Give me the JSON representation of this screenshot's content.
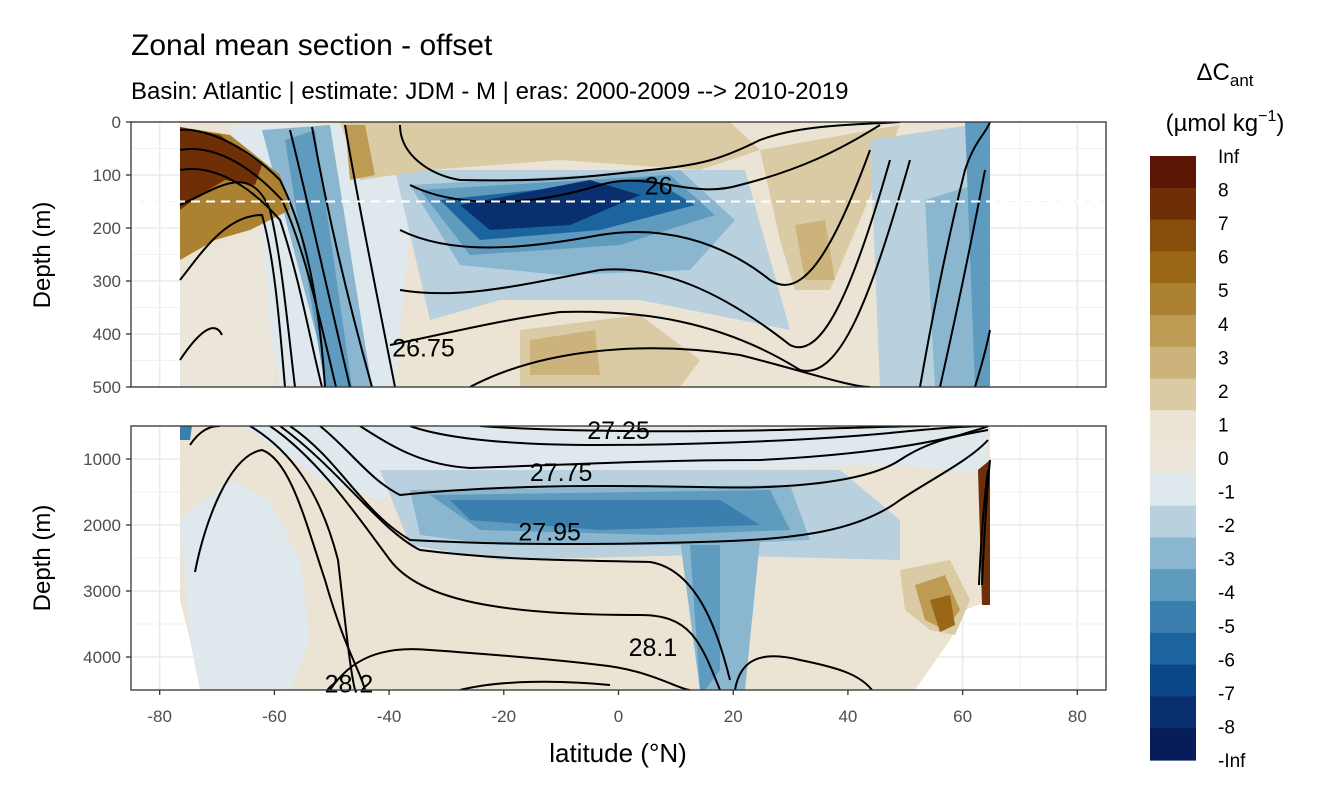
{
  "chart_data": {
    "type": "heatmap",
    "title": "Zonal mean section - offset",
    "subtitle": "Basin: Atlantic | estimate: JDM - M | eras: 2000-2009 --> 2010-2019",
    "xlabel": "latitude (°N)",
    "ylabel": "Depth (m)",
    "xlim": [
      -85,
      85
    ],
    "x_ticks": [
      -80,
      -60,
      -40,
      -20,
      0,
      20,
      40,
      60,
      80
    ],
    "x_tick_labels": [
      "-80",
      "-60",
      "-40",
      "-20",
      "0",
      "20",
      "40",
      "60",
      "80"
    ],
    "data_lat_range": [
      -77,
      64
    ],
    "grid": true,
    "panels": [
      {
        "ylim": [
          0,
          500
        ],
        "y_ticks": [
          0,
          100,
          200,
          300,
          400,
          500
        ],
        "reference_depth": 150,
        "contour_labels": [
          {
            "text": "26",
            "lat": 7,
            "depth": 120
          },
          {
            "text": "26.75",
            "lat": -34,
            "depth": 425
          }
        ]
      },
      {
        "ylim": [
          500,
          4500
        ],
        "y_ticks": [
          1000,
          2000,
          3000,
          4000
        ],
        "contour_labels": [
          {
            "text": "27.25",
            "lat": 0,
            "depth": 560
          },
          {
            "text": "27.75",
            "lat": -10,
            "depth": 1200
          },
          {
            "text": "27.95",
            "lat": -12,
            "depth": 2100
          },
          {
            "text": "28.1",
            "lat": 6,
            "depth": 3850
          },
          {
            "text": "28.2",
            "lat": -47,
            "depth": 4400
          }
        ]
      }
    ],
    "legend": {
      "title_main": "ΔC",
      "title_sub": "ant",
      "unit_pre": "(µmol kg",
      "unit_sup": "−1",
      "unit_post": ")",
      "labels": [
        "Inf",
        "8",
        "7",
        "6",
        "5",
        "4",
        "3",
        "2",
        "1",
        "0",
        "-1",
        "-2",
        "-3",
        "-4",
        "-5",
        "-6",
        "-7",
        "-8",
        "-Inf"
      ],
      "colors": [
        "#5a1505",
        "#6e2e06",
        "#874d0b",
        "#9a6716",
        "#ac8131",
        "#bd9b52",
        "#ccb37c",
        "#dbcba5",
        "#ebe3d3",
        "#ece6da",
        "#dfe8ed",
        "#b9d0de",
        "#8ab7cf",
        "#5f9bbf",
        "#3a7fae",
        "#1b649d",
        "#0b4788",
        "#092f6e",
        "#071d5a"
      ],
      "position": "right"
    }
  }
}
